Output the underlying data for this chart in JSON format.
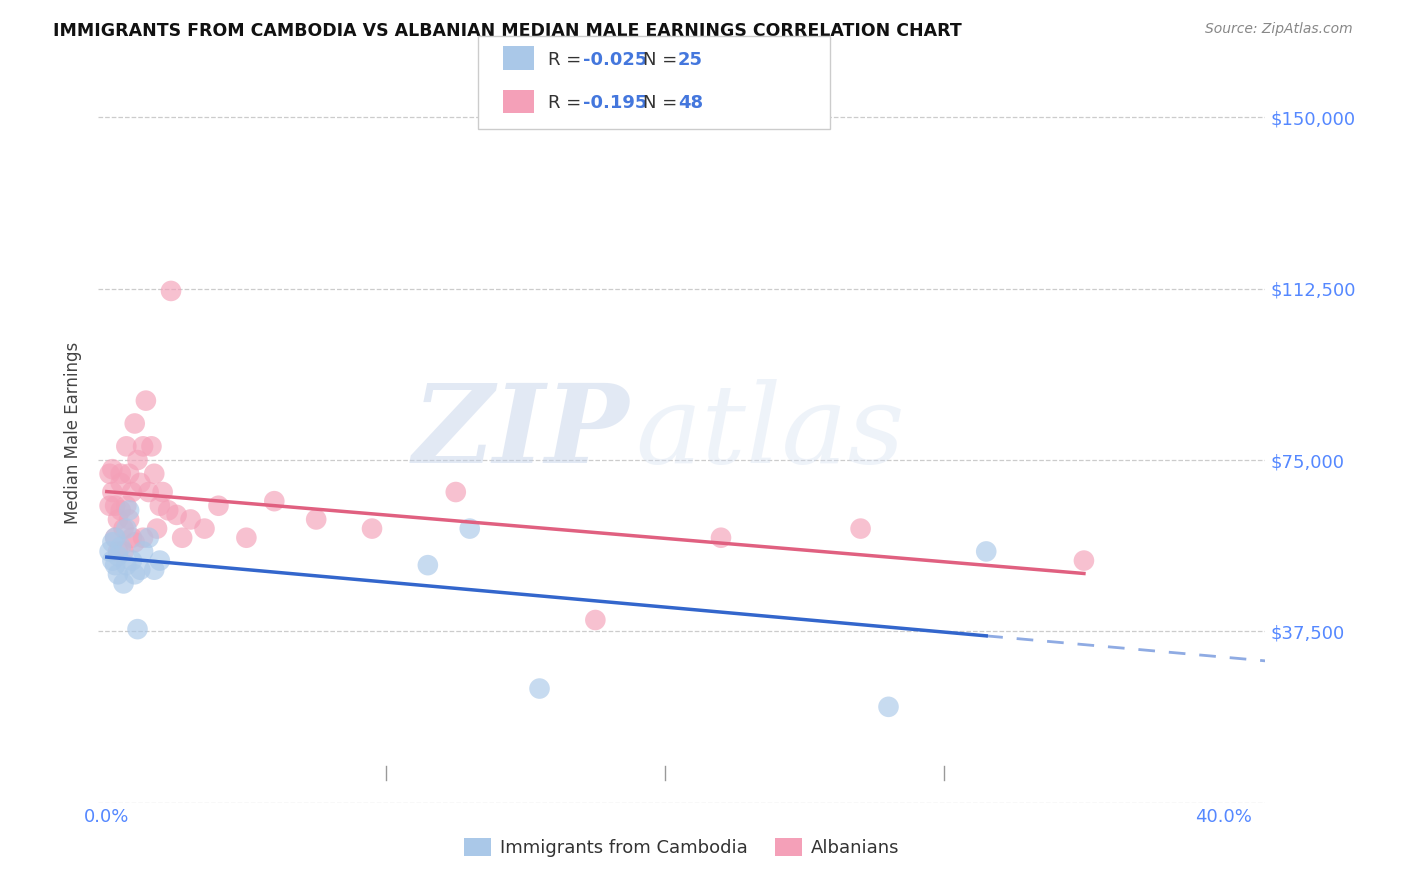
{
  "title": "IMMIGRANTS FROM CAMBODIA VS ALBANIAN MEDIAN MALE EARNINGS CORRELATION CHART",
  "source": "Source: ZipAtlas.com",
  "ylabel": "Median Male Earnings",
  "x_ticks": [
    0.0,
    0.1,
    0.2,
    0.3,
    0.4
  ],
  "x_tick_labels": [
    "0.0%",
    "",
    "",
    "",
    "40.0%"
  ],
  "y_ticks": [
    0,
    37500,
    75000,
    112500,
    150000
  ],
  "y_tick_labels": [
    "",
    "$37,500",
    "$75,000",
    "$112,500",
    "$150,000"
  ],
  "xlim": [
    -0.003,
    0.415
  ],
  "ylim": [
    5000,
    162000
  ],
  "cambodia_color": "#aac8e8",
  "albanian_color": "#f4a0b8",
  "trendline_cambodia_color": "#3366cc",
  "trendline_albanian_color": "#e06080",
  "background_color": "#ffffff",
  "grid_color": "#cccccc",
  "axis_label_color": "#5588ff",
  "legend_R_cambodia": "-0.025",
  "legend_N_cambodia": "25",
  "legend_R_albanian": "-0.195",
  "legend_N_albanian": "48",
  "legend_label_cambodia": "Immigrants from Cambodia",
  "legend_label_albanian": "Albanians",
  "watermark_zip": "ZIP",
  "watermark_atlas": "atlas",
  "cambodia_x": [
    0.001,
    0.002,
    0.002,
    0.003,
    0.003,
    0.004,
    0.004,
    0.005,
    0.006,
    0.007,
    0.007,
    0.008,
    0.009,
    0.01,
    0.011,
    0.012,
    0.013,
    0.015,
    0.017,
    0.019,
    0.115,
    0.13,
    0.155,
    0.28,
    0.315
  ],
  "cambodia_y": [
    55000,
    57000,
    53000,
    52000,
    58000,
    54000,
    50000,
    56000,
    48000,
    60000,
    52000,
    64000,
    53000,
    50000,
    38000,
    51000,
    55000,
    58000,
    51000,
    53000,
    52000,
    60000,
    25000,
    21000,
    55000
  ],
  "albanian_x": [
    0.001,
    0.001,
    0.002,
    0.002,
    0.003,
    0.003,
    0.004,
    0.004,
    0.005,
    0.005,
    0.005,
    0.006,
    0.006,
    0.007,
    0.007,
    0.008,
    0.008,
    0.009,
    0.009,
    0.01,
    0.01,
    0.011,
    0.012,
    0.013,
    0.013,
    0.014,
    0.015,
    0.016,
    0.017,
    0.018,
    0.019,
    0.02,
    0.022,
    0.023,
    0.025,
    0.027,
    0.03,
    0.035,
    0.04,
    0.05,
    0.06,
    0.075,
    0.095,
    0.125,
    0.175,
    0.22,
    0.27,
    0.35
  ],
  "albanian_y": [
    65000,
    72000,
    68000,
    73000,
    65000,
    58000,
    62000,
    55000,
    70000,
    64000,
    72000,
    60000,
    55000,
    78000,
    65000,
    72000,
    62000,
    68000,
    58000,
    83000,
    57000,
    75000,
    70000,
    78000,
    58000,
    88000,
    68000,
    78000,
    72000,
    60000,
    65000,
    68000,
    64000,
    112000,
    63000,
    58000,
    62000,
    60000,
    65000,
    58000,
    66000,
    62000,
    60000,
    68000,
    40000,
    58000,
    60000,
    53000
  ]
}
